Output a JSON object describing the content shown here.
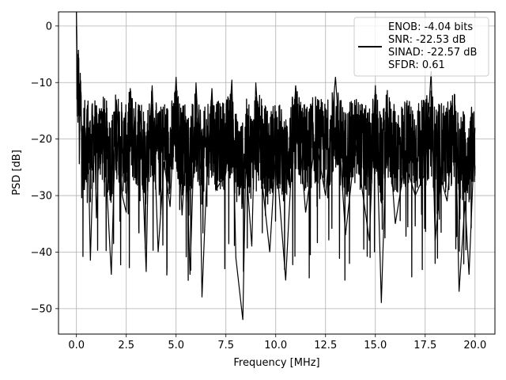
{
  "chart_data": {
    "type": "line",
    "title": "",
    "xlabel": "Frequency [MHz]",
    "ylabel": "PSD [dB]",
    "xlim": [
      -0.9,
      21.0
    ],
    "ylim": [
      -54.5,
      2.5
    ],
    "xticks": [
      0.0,
      2.5,
      5.0,
      7.5,
      10.0,
      12.5,
      15.0,
      17.5,
      20.0
    ],
    "xtick_labels": [
      "0.0",
      "2.5",
      "5.0",
      "7.5",
      "10.0",
      "12.5",
      "15.0",
      "17.5",
      "20.0"
    ],
    "yticks": [
      0,
      -10,
      -20,
      -30,
      -40,
      -50
    ],
    "ytick_labels": [
      "0",
      "−10",
      "−20",
      "−30",
      "−40",
      "−50"
    ],
    "grid": true,
    "legend": {
      "placement": "top-right"
    },
    "series": [
      {
        "name": "ENOB: -4.04 bits\nSNR: -22.53 dB\nSINAD: -22.57 dB\nSFDR: 0.61",
        "legend_lines": [
          "ENOB: -4.04 bits",
          "SNR: -22.53 dB",
          "SINAD: -22.57 dB",
          "SFDR: 0.61"
        ],
        "color": "#000000",
        "x": [
          0.0,
          0.02,
          0.05,
          0.1,
          0.15,
          0.2,
          0.3,
          0.4,
          0.55,
          0.7,
          0.9,
          1.0,
          1.2,
          1.5,
          1.75,
          2.0,
          2.3,
          2.5,
          2.7,
          3.0,
          3.2,
          3.5,
          3.6,
          3.8,
          4.1,
          4.4,
          4.7,
          5.0,
          5.3,
          5.5,
          5.7,
          6.0,
          6.2,
          6.3,
          6.5,
          6.8,
          7.0,
          7.5,
          7.8,
          8.0,
          8.35,
          8.5,
          8.8,
          9.0,
          9.3,
          9.7,
          10.0,
          10.5,
          11.0,
          11.5,
          12.0,
          12.5,
          13.0,
          13.5,
          14.0,
          14.3,
          14.7,
          15.0,
          15.3,
          15.6,
          16.0,
          16.5,
          17.0,
          17.5,
          17.8,
          18.0,
          18.3,
          18.6,
          19.0,
          19.2,
          19.5,
          19.7,
          20.0
        ],
        "values": [
          0.0,
          -5.0,
          -16.0,
          -8.0,
          -20.0,
          -12.0,
          -22.0,
          -29.0,
          -14.0,
          -41.5,
          -16.0,
          -34.0,
          -15.0,
          -27.0,
          -44.0,
          -13.0,
          -30.0,
          -33.0,
          -11.0,
          -28.0,
          -15.0,
          -43.5,
          -25.0,
          -10.5,
          -40.0,
          -24.0,
          -32.0,
          -9.0,
          -33.5,
          -21.0,
          -44.0,
          -10.0,
          -25.0,
          -48.0,
          -30.0,
          -11.0,
          -29.0,
          -26.0,
          -9.5,
          -41.0,
          -52.0,
          -24.0,
          -39.0,
          -10.0,
          -27.0,
          -40.0,
          -22.0,
          -45.0,
          -10.5,
          -33.0,
          -20.0,
          -30.0,
          -9.0,
          -37.0,
          -21.0,
          -28.0,
          -38.0,
          -10.5,
          -49.0,
          -15.0,
          -35.0,
          -24.0,
          -30.0,
          -26.0,
          -8.0,
          -38.0,
          -27.0,
          -31.0,
          -14.0,
          -47.0,
          -31.0,
          -44.0,
          -18.0
        ]
      }
    ]
  }
}
